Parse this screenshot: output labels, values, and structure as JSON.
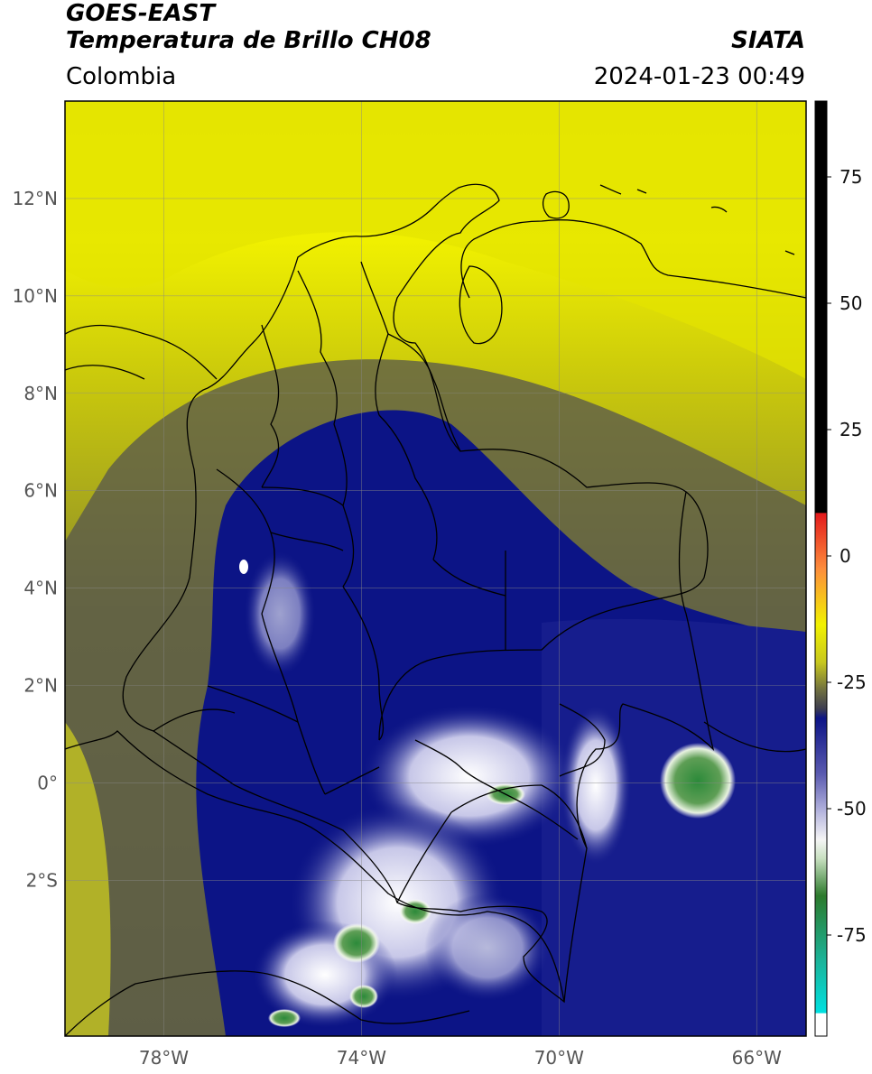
{
  "header": {
    "line1": "GOES-EAST",
    "line2": "Temperatura de Brillo CH08",
    "region": "Colombia",
    "brand": "SIATA",
    "datetime": "2024-01-23 00:49"
  },
  "map": {
    "lon_range": [
      -80,
      -65
    ],
    "lat_range": [
      -5.2,
      14
    ],
    "lat_ticks": [
      {
        "label": "12°N",
        "lat": 12
      },
      {
        "label": "10°N",
        "lat": 10
      },
      {
        "label": "8°N",
        "lat": 8
      },
      {
        "label": "6°N",
        "lat": 6
      },
      {
        "label": "4°N",
        "lat": 4
      },
      {
        "label": "2°N",
        "lat": 2
      },
      {
        "label": "0°",
        "lat": 0
      },
      {
        "label": "2°S",
        "lat": -2
      }
    ],
    "lon_ticks": [
      {
        "label": "78°W",
        "lon": -78
      },
      {
        "label": "74°W",
        "lon": -74
      },
      {
        "label": "70°W",
        "lon": -70
      },
      {
        "label": "66°W",
        "lon": -66
      }
    ]
  },
  "colorbar": {
    "range": [
      -95,
      90
    ],
    "ticks": [
      "75",
      "50",
      "25",
      "0",
      "-25",
      "-50",
      "-75"
    ],
    "tick_values": [
      75,
      50,
      25,
      0,
      -25,
      -50,
      -75
    ],
    "colors": {
      "warm_black": "#000000",
      "red": "#e31a1c",
      "orange": "#fd8d3c",
      "yellow": "#f2f200",
      "olive": "#8c8c3c",
      "gray": "#4a4a55",
      "navy": "#0c1486",
      "lavender": "#9a9ad2",
      "white": "#f5f5f5",
      "green": "#2c7a2c",
      "teal": "#1bb49a",
      "cyan": "#00e0e0"
    }
  }
}
